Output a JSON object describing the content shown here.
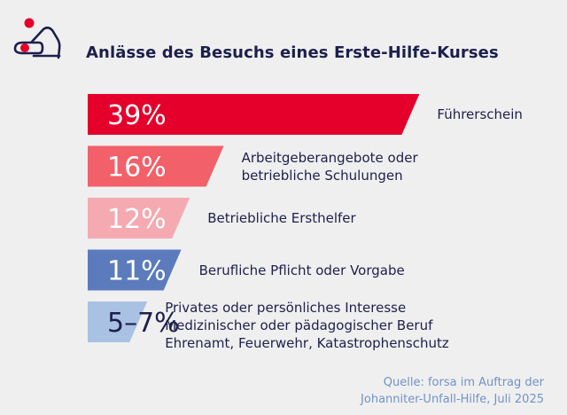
{
  "title": "Anlässe des Besuchs eines Erste-Hilfe-Kurses",
  "logo_icon": "first-aid-person-icon",
  "colors": {
    "title": "#1d1f4c",
    "source": "#6f93c8",
    "logo_red": "#e4002b",
    "logo_navy": "#1d1f4c"
  },
  "chart_data": {
    "type": "bar",
    "orientation": "horizontal",
    "title": "Anlässe des Besuchs eines Erste-Hilfe-Kurses",
    "categories": [
      [
        "Führerschein"
      ],
      [
        "Arbeitgeberangebote oder",
        "betriebliche Schulungen"
      ],
      [
        "Betriebliche Ersthelfer"
      ],
      [
        "Berufliche Pflicht oder Vorgabe"
      ],
      [
        "Privates oder persönliches Interesse",
        "Medizinischer oder pädagogischer Beruf",
        "Ehrenamt, Feuerwehr, Katastrophenschutz"
      ]
    ],
    "values": [
      39,
      16,
      12,
      11,
      7
    ],
    "value_labels": [
      "39%",
      "16%",
      "12%",
      "11%",
      "5–7%"
    ],
    "unit": "%",
    "bar_colors": [
      "#e4002b",
      "#f2606a",
      "#f5a9b0",
      "#5b7bbd",
      "#a9c2e3"
    ],
    "value_label_colors": [
      "#ffffff",
      "#ffffff",
      "#ffffff",
      "#ffffff",
      "#1d1f4c"
    ],
    "grid": false,
    "legend": "none"
  },
  "source": {
    "line1": "Quelle: forsa im Auftrag der",
    "line2": "Johanniter-Unfall-Hilfe, Juli 2025"
  }
}
